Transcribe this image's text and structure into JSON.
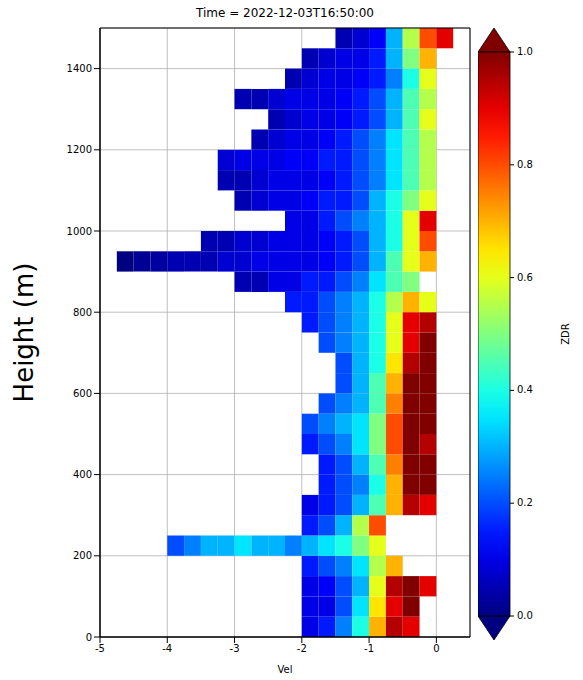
{
  "chart_data": {
    "type": "heatmap",
    "title": "Time = 2022-12-03T16:50:00",
    "xlabel": "Vel",
    "ylabel": "Height (m)",
    "xlim": [
      -5,
      0.5
    ],
    "xticks": [
      -5,
      -4,
      -3,
      -2,
      -1,
      0
    ],
    "ylim": [
      0,
      1500
    ],
    "yticks": [
      0,
      200,
      400,
      600,
      800,
      1000,
      1200,
      1400
    ],
    "grid": true,
    "x_bins": [
      -5,
      -4.75,
      -4.5,
      -4.25,
      -4,
      -3.75,
      -3.5,
      -3.25,
      -3,
      -2.75,
      -2.5,
      -2.25,
      -2,
      -1.75,
      -1.5,
      -1.25,
      -1,
      -0.75,
      -0.5,
      -0.25,
      0,
      0.25
    ],
    "y_bins": [
      0,
      50,
      100,
      150,
      200,
      250,
      300,
      350,
      400,
      450,
      500,
      550,
      600,
      650,
      700,
      750,
      800,
      850,
      900,
      950,
      1000,
      1050,
      1100,
      1150,
      1200,
      1250,
      1300,
      1350,
      1400,
      1450,
      1500
    ],
    "zdr": [
      [
        null,
        null,
        null,
        null,
        null,
        null,
        null,
        null,
        null,
        null,
        null,
        null,
        0.1,
        0.15,
        0.25,
        0.4,
        0.7,
        0.95,
        0.9,
        null,
        null
      ],
      [
        null,
        null,
        null,
        null,
        null,
        null,
        null,
        null,
        null,
        null,
        null,
        null,
        0.1,
        0.1,
        0.2,
        0.35,
        0.65,
        0.9,
        1.0,
        null,
        null
      ],
      [
        null,
        null,
        null,
        null,
        null,
        null,
        null,
        null,
        null,
        null,
        null,
        null,
        0.1,
        0.12,
        0.2,
        0.3,
        0.6,
        0.95,
        1.0,
        0.9,
        null
      ],
      [
        null,
        null,
        null,
        null,
        null,
        null,
        null,
        null,
        null,
        null,
        null,
        null,
        0.15,
        0.2,
        0.25,
        0.35,
        0.55,
        0.7,
        null,
        null,
        null
      ],
      [
        null,
        null,
        null,
        null,
        0.2,
        0.25,
        0.3,
        0.3,
        0.35,
        0.3,
        0.3,
        0.25,
        0.3,
        0.35,
        0.4,
        0.5,
        0.6,
        null,
        null,
        null,
        null
      ],
      [
        null,
        null,
        null,
        null,
        null,
        null,
        null,
        null,
        null,
        null,
        null,
        null,
        0.15,
        0.2,
        0.3,
        0.55,
        0.8,
        null,
        null,
        null,
        null
      ],
      [
        null,
        null,
        null,
        null,
        null,
        null,
        null,
        null,
        null,
        null,
        null,
        null,
        0.1,
        0.15,
        0.2,
        0.3,
        0.45,
        0.7,
        0.95,
        0.9,
        null
      ],
      [
        null,
        null,
        null,
        null,
        null,
        null,
        null,
        null,
        null,
        null,
        null,
        null,
        null,
        0.15,
        0.2,
        0.25,
        0.4,
        0.7,
        1.0,
        1.0,
        null
      ],
      [
        null,
        null,
        null,
        null,
        null,
        null,
        null,
        null,
        null,
        null,
        null,
        null,
        null,
        0.15,
        0.2,
        0.3,
        0.45,
        0.75,
        1.0,
        1.0,
        null
      ],
      [
        null,
        null,
        null,
        null,
        null,
        null,
        null,
        null,
        null,
        null,
        null,
        null,
        0.15,
        0.2,
        0.25,
        0.35,
        0.5,
        0.8,
        1.0,
        0.95,
        null
      ],
      [
        null,
        null,
        null,
        null,
        null,
        null,
        null,
        null,
        null,
        null,
        null,
        null,
        0.2,
        0.25,
        0.3,
        0.35,
        0.5,
        0.8,
        1.0,
        1.0,
        null
      ],
      [
        null,
        null,
        null,
        null,
        null,
        null,
        null,
        null,
        null,
        null,
        null,
        null,
        null,
        0.2,
        0.25,
        0.3,
        0.45,
        0.75,
        1.0,
        1.0,
        null
      ],
      [
        null,
        null,
        null,
        null,
        null,
        null,
        null,
        null,
        null,
        null,
        null,
        null,
        null,
        null,
        0.2,
        0.3,
        0.45,
        0.7,
        1.0,
        1.0,
        null
      ],
      [
        null,
        null,
        null,
        null,
        null,
        null,
        null,
        null,
        null,
        null,
        null,
        null,
        null,
        null,
        0.2,
        0.3,
        0.4,
        0.65,
        0.95,
        1.0,
        null
      ],
      [
        null,
        null,
        null,
        null,
        null,
        null,
        null,
        null,
        null,
        null,
        null,
        null,
        null,
        0.2,
        0.25,
        0.3,
        0.4,
        0.6,
        0.9,
        1.0,
        null
      ],
      [
        null,
        null,
        null,
        null,
        null,
        null,
        null,
        null,
        null,
        null,
        null,
        null,
        0.15,
        0.2,
        0.25,
        0.3,
        0.4,
        0.6,
        0.9,
        0.95,
        null
      ],
      [
        null,
        null,
        null,
        null,
        null,
        null,
        null,
        null,
        null,
        null,
        null,
        0.15,
        0.15,
        0.2,
        0.25,
        0.3,
        0.4,
        0.55,
        0.7,
        0.6,
        null
      ],
      [
        null,
        null,
        null,
        null,
        null,
        null,
        null,
        null,
        0.05,
        0.05,
        0.1,
        0.1,
        0.15,
        0.15,
        0.2,
        0.25,
        0.35,
        0.45,
        0.5,
        null,
        null
      ],
      [
        null,
        0.0,
        0.02,
        0.03,
        0.05,
        0.05,
        0.05,
        0.08,
        0.08,
        0.1,
        0.1,
        0.1,
        0.1,
        0.12,
        0.15,
        0.2,
        0.3,
        0.45,
        0.6,
        0.7,
        null
      ],
      [
        null,
        null,
        null,
        null,
        null,
        null,
        0.05,
        0.05,
        0.08,
        0.08,
        0.1,
        0.1,
        0.1,
        0.12,
        0.15,
        0.2,
        0.3,
        0.4,
        0.6,
        0.8,
        null
      ],
      [
        null,
        null,
        null,
        null,
        null,
        null,
        null,
        null,
        null,
        null,
        null,
        0.1,
        0.1,
        0.15,
        0.2,
        0.25,
        0.3,
        0.4,
        0.6,
        0.9,
        null
      ],
      [
        null,
        null,
        null,
        null,
        null,
        null,
        null,
        null,
        0.05,
        0.08,
        0.1,
        0.1,
        0.12,
        0.15,
        0.15,
        0.2,
        0.3,
        0.4,
        0.5,
        0.6,
        null
      ],
      [
        null,
        null,
        null,
        null,
        null,
        null,
        null,
        0.05,
        0.05,
        0.08,
        0.1,
        0.1,
        0.1,
        0.12,
        0.15,
        0.2,
        0.25,
        0.35,
        0.45,
        0.55,
        null
      ],
      [
        null,
        null,
        null,
        null,
        null,
        null,
        null,
        0.08,
        0.1,
        0.1,
        0.1,
        0.12,
        0.12,
        0.15,
        0.15,
        0.2,
        0.25,
        0.35,
        0.45,
        0.55,
        null
      ],
      [
        null,
        null,
        null,
        null,
        null,
        null,
        null,
        null,
        null,
        0.05,
        0.08,
        0.1,
        0.1,
        0.12,
        0.15,
        0.2,
        0.25,
        0.35,
        0.45,
        0.55,
        null
      ],
      [
        null,
        null,
        null,
        null,
        null,
        null,
        null,
        null,
        null,
        null,
        0.05,
        0.08,
        0.1,
        0.1,
        0.12,
        0.15,
        0.2,
        0.3,
        0.45,
        0.6,
        null
      ],
      [
        null,
        null,
        null,
        null,
        null,
        null,
        null,
        null,
        0.05,
        0.05,
        0.08,
        0.1,
        0.1,
        0.1,
        0.12,
        0.15,
        0.2,
        0.3,
        0.45,
        0.55,
        null
      ],
      [
        null,
        null,
        null,
        null,
        null,
        null,
        null,
        null,
        null,
        null,
        null,
        0.05,
        0.08,
        0.1,
        0.1,
        0.12,
        0.15,
        0.25,
        0.4,
        0.6,
        null
      ],
      [
        null,
        null,
        null,
        null,
        null,
        null,
        null,
        null,
        null,
        null,
        null,
        null,
        0.05,
        0.08,
        0.1,
        0.1,
        0.15,
        0.3,
        0.5,
        0.7,
        null
      ],
      [
        null,
        null,
        null,
        null,
        null,
        null,
        null,
        null,
        null,
        null,
        null,
        null,
        null,
        null,
        0.05,
        0.08,
        0.12,
        0.3,
        0.55,
        0.8,
        0.9
      ]
    ],
    "colorbar": {
      "label": "ZDR",
      "range": [
        0,
        1
      ],
      "ticks": [
        {
          "value": 0,
          "label": "0.0"
        },
        0.2,
        0.4,
        0.6,
        0.8,
        {
          "value": 1,
          "label": "1.0"
        }
      ]
    }
  }
}
